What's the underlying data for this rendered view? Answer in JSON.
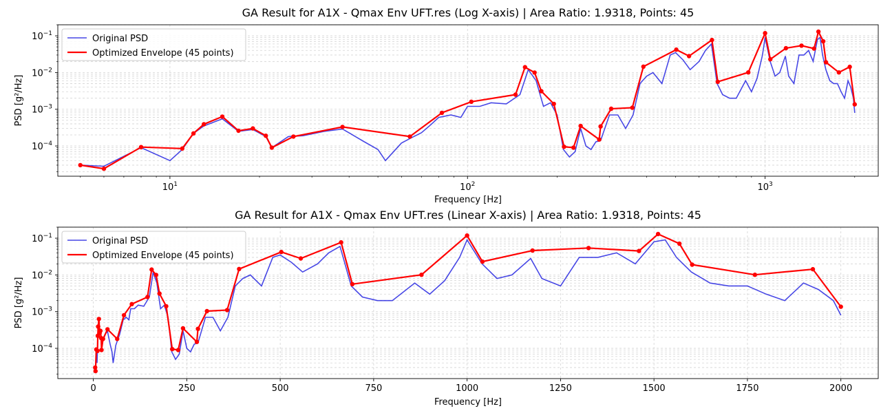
{
  "colors": {
    "psd": "#0000dd",
    "envelope": "#ff0000",
    "grid": "#b0b0b0"
  },
  "chart_data": [
    {
      "type": "line",
      "title": "GA Result for A1X - Qmax Env UFT.res (Log X-axis) | Area Ratio: 1.9318, Points: 45",
      "xlabel": "Frequency [Hz]",
      "ylabel": "PSD [g²/Hz]",
      "xscale": "log",
      "yscale": "log",
      "xlim": [
        4.2,
        2400
      ],
      "ylim": [
        1.5e-05,
        0.2
      ],
      "grid": "on",
      "legend_position": "top-left",
      "xtick_labels": [
        {
          "v": 10,
          "base": "10",
          "exp": "1"
        },
        {
          "v": 100,
          "base": "10",
          "exp": "2"
        },
        {
          "v": 1000,
          "base": "10",
          "exp": "3"
        }
      ],
      "ytick_labels": [
        {
          "v": 0.0001,
          "base": "10",
          "exp": "−4"
        },
        {
          "v": 0.001,
          "base": "10",
          "exp": "−3"
        },
        {
          "v": 0.01,
          "base": "10",
          "exp": "−2"
        },
        {
          "v": 0.1,
          "base": "10",
          "exp": "−1"
        }
      ]
    },
    {
      "type": "line",
      "title": "GA Result for A1X - Qmax Env UFT.res (Linear X-axis) | Area Ratio: 1.9318, Points: 45",
      "xlabel": "Frequency [Hz]",
      "ylabel": "PSD [g²/Hz]",
      "xscale": "linear",
      "yscale": "log",
      "xlim": [
        -95,
        2100
      ],
      "ylim": [
        1.5e-05,
        0.2
      ],
      "grid": "on",
      "legend_position": "top-left",
      "xtick_labels": [
        {
          "v": 0,
          "text": "0"
        },
        {
          "v": 250,
          "text": "250"
        },
        {
          "v": 500,
          "text": "500"
        },
        {
          "v": 750,
          "text": "750"
        },
        {
          "v": 1000,
          "text": "1000"
        },
        {
          "v": 1250,
          "text": "1250"
        },
        {
          "v": 1500,
          "text": "1500"
        },
        {
          "v": 1750,
          "text": "1750"
        },
        {
          "v": 2000,
          "text": "2000"
        }
      ],
      "ytick_labels": [
        {
          "v": 0.0001,
          "base": "10",
          "exp": "−4"
        },
        {
          "v": 0.001,
          "base": "10",
          "exp": "−3"
        },
        {
          "v": 0.01,
          "base": "10",
          "exp": "−2"
        },
        {
          "v": 0.1,
          "base": "10",
          "exp": "−1"
        }
      ]
    }
  ],
  "series": [
    {
      "name": "Original PSD",
      "x": [
        5,
        6,
        8,
        10,
        11,
        12,
        13,
        15,
        17,
        19,
        21,
        22,
        25,
        28,
        33,
        38,
        42,
        45,
        50,
        53,
        60,
        65,
        70,
        75,
        80,
        88,
        95,
        100,
        110,
        120,
        135,
        150,
        160,
        170,
        180,
        190,
        200,
        210,
        220,
        230,
        240,
        250,
        260,
        270,
        280,
        300,
        320,
        340,
        360,
        380,
        400,
        420,
        450,
        480,
        500,
        530,
        560,
        600,
        630,
        660,
        690,
        720,
        760,
        800,
        860,
        900,
        940,
        980,
        1000,
        1040,
        1080,
        1120,
        1170,
        1200,
        1250,
        1300,
        1350,
        1400,
        1450,
        1500,
        1530,
        1560,
        1600,
        1650,
        1700,
        1750,
        1800,
        1850,
        1900,
        1940,
        1980,
        2000
      ],
      "y": [
        3e-05,
        2.8e-05,
        9e-05,
        4e-05,
        8e-05,
        0.00022,
        0.00035,
        0.00055,
        0.00025,
        0.00028,
        0.00018,
        9e-05,
        0.00018,
        0.00019,
        0.00025,
        0.00029,
        0.00018,
        0.00013,
        8e-05,
        4e-05,
        0.00012,
        0.00017,
        0.00023,
        0.00037,
        0.0006,
        0.0007,
        0.0006,
        0.0012,
        0.0012,
        0.0015,
        0.0014,
        0.0025,
        0.012,
        0.006,
        0.0012,
        0.0015,
        0.0007,
        8e-05,
        5e-05,
        7e-05,
        0.0003,
        0.0001,
        8e-05,
        0.00013,
        0.00014,
        0.0007,
        0.0007,
        0.0003,
        0.0007,
        0.005,
        0.008,
        0.01,
        0.005,
        0.03,
        0.035,
        0.022,
        0.012,
        0.02,
        0.04,
        0.06,
        0.005,
        0.0025,
        0.002,
        0.002,
        0.006,
        0.003,
        0.007,
        0.03,
        0.09,
        0.02,
        0.008,
        0.01,
        0.028,
        0.008,
        0.005,
        0.03,
        0.03,
        0.04,
        0.02,
        0.08,
        0.09,
        0.03,
        0.012,
        0.006,
        0.005,
        0.005,
        0.003,
        0.002,
        0.006,
        0.004,
        0.002,
        0.0008
      ]
    },
    {
      "name": "Optimized Envelope (45 points)",
      "x": [
        5,
        6,
        8,
        11,
        12,
        13,
        15,
        17,
        19,
        21,
        22,
        26,
        38,
        64,
        82,
        103,
        145,
        156,
        168,
        177,
        195,
        211,
        227,
        240,
        277,
        280,
        304,
        358,
        390,
        503,
        555,
        663,
        693,
        878,
        1000,
        1041,
        1175,
        1325,
        1460,
        1511,
        1568,
        1602,
        1770,
        1925,
        2000
      ],
      "y": [
        3e-05,
        2.4e-05,
        9.3e-05,
        8.5e-05,
        0.00022,
        0.00039,
        0.00063,
        0.00026,
        0.0003,
        0.00019,
        9e-05,
        0.00018,
        0.00033,
        0.00018,
        0.0008,
        0.0016,
        0.0025,
        0.014,
        0.01,
        0.0031,
        0.0014,
        9.5e-05,
        9e-05,
        0.00035,
        0.00015,
        0.00034,
        0.00103,
        0.0011,
        0.0145,
        0.042,
        0.028,
        0.077,
        0.0056,
        0.0101,
        0.118,
        0.023,
        0.046,
        0.054,
        0.045,
        0.13,
        0.071,
        0.019,
        0.0101,
        0.0143,
        0.00136
      ]
    }
  ]
}
